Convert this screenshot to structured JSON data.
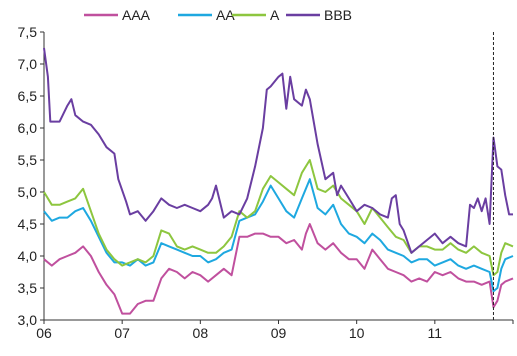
{
  "chart_data": {
    "type": "line",
    "title": "",
    "xlabel": "",
    "ylabel": "",
    "x_tick_labels": [
      "06",
      "07",
      "08",
      "09",
      "10",
      "11"
    ],
    "x_range": [
      2006.0,
      2012.0
    ],
    "ylim": [
      3.0,
      7.5
    ],
    "y_ticks": [
      3.0,
      3.5,
      4.0,
      4.5,
      5.0,
      5.5,
      6.0,
      6.5,
      7.0,
      7.5
    ],
    "y_tick_labels": [
      "3,0",
      "3,5",
      "4,0",
      "4,5",
      "5,0",
      "5,5",
      "6,0",
      "6,5",
      "7,0",
      "7,5"
    ],
    "legend_position": "top",
    "grid": false,
    "vertical_marker_x": 2011.75,
    "series": [
      {
        "name": "AAA",
        "color": "#c0509e",
        "points": [
          [
            2006.0,
            3.95
          ],
          [
            2006.1,
            3.85
          ],
          [
            2006.2,
            3.95
          ],
          [
            2006.3,
            4.0
          ],
          [
            2006.4,
            4.05
          ],
          [
            2006.5,
            4.15
          ],
          [
            2006.6,
            4.0
          ],
          [
            2006.7,
            3.75
          ],
          [
            2006.8,
            3.55
          ],
          [
            2006.9,
            3.4
          ],
          [
            2007.0,
            3.1
          ],
          [
            2007.1,
            3.1
          ],
          [
            2007.2,
            3.25
          ],
          [
            2007.3,
            3.3
          ],
          [
            2007.4,
            3.3
          ],
          [
            2007.5,
            3.65
          ],
          [
            2007.6,
            3.8
          ],
          [
            2007.7,
            3.75
          ],
          [
            2007.8,
            3.65
          ],
          [
            2007.9,
            3.75
          ],
          [
            2008.0,
            3.7
          ],
          [
            2008.1,
            3.6
          ],
          [
            2008.2,
            3.7
          ],
          [
            2008.3,
            3.8
          ],
          [
            2008.4,
            3.7
          ],
          [
            2008.5,
            4.3
          ],
          [
            2008.6,
            4.3
          ],
          [
            2008.7,
            4.35
          ],
          [
            2008.8,
            4.35
          ],
          [
            2008.9,
            4.3
          ],
          [
            2009.0,
            4.3
          ],
          [
            2009.1,
            4.2
          ],
          [
            2009.2,
            4.25
          ],
          [
            2009.3,
            4.1
          ],
          [
            2009.35,
            4.35
          ],
          [
            2009.4,
            4.5
          ],
          [
            2009.5,
            4.2
          ],
          [
            2009.6,
            4.1
          ],
          [
            2009.7,
            4.2
          ],
          [
            2009.8,
            4.05
          ],
          [
            2009.9,
            3.95
          ],
          [
            2010.0,
            3.95
          ],
          [
            2010.1,
            3.8
          ],
          [
            2010.2,
            4.1
          ],
          [
            2010.3,
            3.95
          ],
          [
            2010.4,
            3.8
          ],
          [
            2010.5,
            3.75
          ],
          [
            2010.6,
            3.7
          ],
          [
            2010.7,
            3.6
          ],
          [
            2010.8,
            3.65
          ],
          [
            2010.9,
            3.6
          ],
          [
            2011.0,
            3.75
          ],
          [
            2011.1,
            3.7
          ],
          [
            2011.2,
            3.75
          ],
          [
            2011.3,
            3.65
          ],
          [
            2011.4,
            3.6
          ],
          [
            2011.5,
            3.6
          ],
          [
            2011.6,
            3.55
          ],
          [
            2011.7,
            3.6
          ],
          [
            2011.75,
            3.2
          ],
          [
            2011.8,
            3.3
          ],
          [
            2011.85,
            3.55
          ],
          [
            2011.9,
            3.6
          ],
          [
            2012.0,
            3.65
          ]
        ]
      },
      {
        "name": "AA",
        "color": "#1ea8e0",
        "points": [
          [
            2006.0,
            4.7
          ],
          [
            2006.1,
            4.55
          ],
          [
            2006.2,
            4.6
          ],
          [
            2006.3,
            4.6
          ],
          [
            2006.4,
            4.7
          ],
          [
            2006.5,
            4.75
          ],
          [
            2006.6,
            4.55
          ],
          [
            2006.7,
            4.3
          ],
          [
            2006.8,
            4.05
          ],
          [
            2006.9,
            3.9
          ],
          [
            2007.0,
            3.9
          ],
          [
            2007.1,
            3.85
          ],
          [
            2007.2,
            3.95
          ],
          [
            2007.3,
            3.85
          ],
          [
            2007.4,
            3.9
          ],
          [
            2007.5,
            4.2
          ],
          [
            2007.6,
            4.15
          ],
          [
            2007.7,
            4.1
          ],
          [
            2007.8,
            4.05
          ],
          [
            2007.9,
            4.0
          ],
          [
            2008.0,
            4.0
          ],
          [
            2008.1,
            3.9
          ],
          [
            2008.2,
            3.95
          ],
          [
            2008.3,
            4.05
          ],
          [
            2008.4,
            4.1
          ],
          [
            2008.5,
            4.55
          ],
          [
            2008.6,
            4.6
          ],
          [
            2008.7,
            4.65
          ],
          [
            2008.8,
            4.85
          ],
          [
            2008.9,
            5.1
          ],
          [
            2009.0,
            4.9
          ],
          [
            2009.1,
            4.7
          ],
          [
            2009.2,
            4.6
          ],
          [
            2009.3,
            4.9
          ],
          [
            2009.4,
            5.2
          ],
          [
            2009.5,
            4.75
          ],
          [
            2009.6,
            4.65
          ],
          [
            2009.7,
            4.8
          ],
          [
            2009.8,
            4.5
          ],
          [
            2009.9,
            4.35
          ],
          [
            2010.0,
            4.3
          ],
          [
            2010.1,
            4.2
          ],
          [
            2010.2,
            4.35
          ],
          [
            2010.3,
            4.25
          ],
          [
            2010.4,
            4.1
          ],
          [
            2010.5,
            4.05
          ],
          [
            2010.6,
            4.0
          ],
          [
            2010.7,
            3.9
          ],
          [
            2010.8,
            3.95
          ],
          [
            2010.9,
            3.95
          ],
          [
            2011.0,
            3.85
          ],
          [
            2011.1,
            3.9
          ],
          [
            2011.2,
            3.95
          ],
          [
            2011.3,
            3.85
          ],
          [
            2011.4,
            3.8
          ],
          [
            2011.5,
            3.85
          ],
          [
            2011.6,
            3.8
          ],
          [
            2011.7,
            3.75
          ],
          [
            2011.75,
            3.45
          ],
          [
            2011.8,
            3.5
          ],
          [
            2011.85,
            3.8
          ],
          [
            2011.9,
            3.95
          ],
          [
            2012.0,
            4.0
          ]
        ]
      },
      {
        "name": "A",
        "color": "#8dc63f",
        "points": [
          [
            2006.0,
            5.0
          ],
          [
            2006.1,
            4.8
          ],
          [
            2006.2,
            4.8
          ],
          [
            2006.3,
            4.85
          ],
          [
            2006.4,
            4.9
          ],
          [
            2006.5,
            5.05
          ],
          [
            2006.6,
            4.7
          ],
          [
            2006.7,
            4.35
          ],
          [
            2006.8,
            4.1
          ],
          [
            2006.9,
            3.95
          ],
          [
            2007.0,
            3.85
          ],
          [
            2007.1,
            3.9
          ],
          [
            2007.2,
            3.95
          ],
          [
            2007.3,
            3.9
          ],
          [
            2007.4,
            4.0
          ],
          [
            2007.5,
            4.4
          ],
          [
            2007.6,
            4.35
          ],
          [
            2007.7,
            4.15
          ],
          [
            2007.8,
            4.1
          ],
          [
            2007.9,
            4.15
          ],
          [
            2008.0,
            4.1
          ],
          [
            2008.1,
            4.05
          ],
          [
            2008.2,
            4.05
          ],
          [
            2008.3,
            4.15
          ],
          [
            2008.4,
            4.3
          ],
          [
            2008.5,
            4.7
          ],
          [
            2008.6,
            4.6
          ],
          [
            2008.7,
            4.7
          ],
          [
            2008.8,
            5.05
          ],
          [
            2008.9,
            5.25
          ],
          [
            2009.0,
            5.15
          ],
          [
            2009.1,
            5.05
          ],
          [
            2009.2,
            4.95
          ],
          [
            2009.3,
            5.3
          ],
          [
            2009.4,
            5.5
          ],
          [
            2009.5,
            5.05
          ],
          [
            2009.6,
            5.0
          ],
          [
            2009.7,
            5.1
          ],
          [
            2009.8,
            4.9
          ],
          [
            2009.9,
            4.8
          ],
          [
            2010.0,
            4.7
          ],
          [
            2010.1,
            4.5
          ],
          [
            2010.2,
            4.75
          ],
          [
            2010.3,
            4.6
          ],
          [
            2010.4,
            4.45
          ],
          [
            2010.5,
            4.3
          ],
          [
            2010.6,
            4.25
          ],
          [
            2010.7,
            4.05
          ],
          [
            2010.8,
            4.15
          ],
          [
            2010.9,
            4.15
          ],
          [
            2011.0,
            4.1
          ],
          [
            2011.1,
            4.1
          ],
          [
            2011.2,
            4.2
          ],
          [
            2011.3,
            4.1
          ],
          [
            2011.4,
            4.05
          ],
          [
            2011.5,
            4.15
          ],
          [
            2011.6,
            4.05
          ],
          [
            2011.7,
            4.0
          ],
          [
            2011.75,
            3.7
          ],
          [
            2011.8,
            3.75
          ],
          [
            2011.85,
            4.05
          ],
          [
            2011.9,
            4.2
          ],
          [
            2012.0,
            4.15
          ]
        ]
      },
      {
        "name": "BBB",
        "color": "#6a3ea1",
        "points": [
          [
            2006.0,
            7.25
          ],
          [
            2006.05,
            6.8
          ],
          [
            2006.08,
            6.1
          ],
          [
            2006.2,
            6.1
          ],
          [
            2006.3,
            6.35
          ],
          [
            2006.35,
            6.45
          ],
          [
            2006.4,
            6.2
          ],
          [
            2006.5,
            6.1
          ],
          [
            2006.6,
            6.05
          ],
          [
            2006.7,
            5.9
          ],
          [
            2006.8,
            5.7
          ],
          [
            2006.9,
            5.6
          ],
          [
            2006.95,
            5.2
          ],
          [
            2007.05,
            4.85
          ],
          [
            2007.1,
            4.65
          ],
          [
            2007.2,
            4.7
          ],
          [
            2007.3,
            4.55
          ],
          [
            2007.4,
            4.7
          ],
          [
            2007.5,
            4.9
          ],
          [
            2007.6,
            4.8
          ],
          [
            2007.7,
            4.75
          ],
          [
            2007.8,
            4.8
          ],
          [
            2007.9,
            4.75
          ],
          [
            2008.0,
            4.7
          ],
          [
            2008.1,
            4.8
          ],
          [
            2008.15,
            4.9
          ],
          [
            2008.2,
            5.1
          ],
          [
            2008.3,
            4.6
          ],
          [
            2008.4,
            4.7
          ],
          [
            2008.5,
            4.65
          ],
          [
            2008.6,
            4.9
          ],
          [
            2008.7,
            5.4
          ],
          [
            2008.8,
            6.0
          ],
          [
            2008.85,
            6.6
          ],
          [
            2008.9,
            6.65
          ],
          [
            2009.0,
            6.8
          ],
          [
            2009.05,
            6.85
          ],
          [
            2009.1,
            6.3
          ],
          [
            2009.15,
            6.8
          ],
          [
            2009.2,
            6.45
          ],
          [
            2009.3,
            6.35
          ],
          [
            2009.35,
            6.6
          ],
          [
            2009.4,
            6.45
          ],
          [
            2009.5,
            5.75
          ],
          [
            2009.6,
            5.2
          ],
          [
            2009.7,
            5.3
          ],
          [
            2009.75,
            4.95
          ],
          [
            2009.8,
            5.1
          ],
          [
            2009.9,
            4.9
          ],
          [
            2010.0,
            4.7
          ],
          [
            2010.1,
            4.8
          ],
          [
            2010.2,
            4.75
          ],
          [
            2010.3,
            4.65
          ],
          [
            2010.4,
            4.6
          ],
          [
            2010.45,
            4.9
          ],
          [
            2010.5,
            4.95
          ],
          [
            2010.55,
            4.5
          ],
          [
            2010.6,
            4.4
          ],
          [
            2010.7,
            4.05
          ],
          [
            2010.8,
            4.15
          ],
          [
            2010.9,
            4.25
          ],
          [
            2011.0,
            4.35
          ],
          [
            2011.1,
            4.2
          ],
          [
            2011.2,
            4.3
          ],
          [
            2011.3,
            4.2
          ],
          [
            2011.4,
            4.15
          ],
          [
            2011.45,
            4.8
          ],
          [
            2011.5,
            4.75
          ],
          [
            2011.55,
            4.9
          ],
          [
            2011.6,
            4.7
          ],
          [
            2011.65,
            4.9
          ],
          [
            2011.7,
            4.5
          ],
          [
            2011.75,
            5.85
          ],
          [
            2011.8,
            5.4
          ],
          [
            2011.85,
            5.35
          ],
          [
            2011.9,
            4.95
          ],
          [
            2011.95,
            4.65
          ],
          [
            2012.0,
            4.65
          ]
        ]
      }
    ]
  }
}
